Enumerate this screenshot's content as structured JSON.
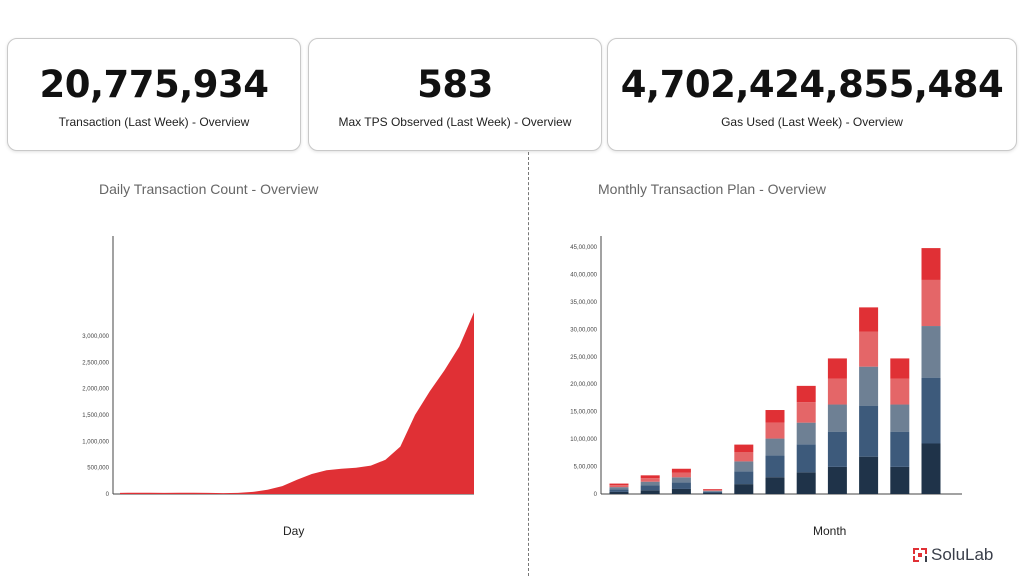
{
  "cards": [
    {
      "value": "20,775,934",
      "label": "Transaction (Last Week) - Overview"
    },
    {
      "value": "583",
      "label": "Max TPS Observed (Last Week) - Overview"
    },
    {
      "value": "4,702,424,855,484",
      "label": "Gas Used (Last Week) - Overview"
    }
  ],
  "brand": {
    "name": "SoluLab",
    "color": "#e03035"
  },
  "chart_data": [
    {
      "type": "area",
      "title": "Daily Transaction Count - Overview",
      "xlabel": "Day",
      "ylabel": "",
      "ylim": [
        0,
        3000000
      ],
      "yticks": [
        "0",
        "500,000",
        "1,000,000",
        "1,500,000",
        "2,000,000",
        "2,500,000",
        "3,000,000"
      ],
      "ytick_values": [
        0,
        500000,
        1000000,
        1500000,
        2000000,
        2500000,
        3000000
      ],
      "color": "#e03035",
      "values": [
        20000,
        25000,
        22000,
        20000,
        22000,
        24000,
        20000,
        18000,
        20000,
        40000,
        80000,
        150000,
        270000,
        380000,
        450000,
        480000,
        500000,
        540000,
        650000,
        900000,
        1500000,
        1950000,
        2350000,
        2800000,
        3450000
      ]
    },
    {
      "type": "bar",
      "stacked": true,
      "title": "Monthly Transaction Plan - Overview",
      "xlabel": "Month",
      "ylabel": "",
      "ylim": [
        0,
        4500000
      ],
      "yticks": [
        "0",
        "5,00,000",
        "10,00,000",
        "15,00,000",
        "20,00,000",
        "25,00,000",
        "30,00,000",
        "35,00,000",
        "40,00,000",
        "45,00,000"
      ],
      "ytick_values": [
        0,
        500000,
        1000000,
        1500000,
        2000000,
        2500000,
        3000000,
        3500000,
        4000000,
        4500000
      ],
      "series": [
        {
          "color": "#1f3349",
          "values": [
            38000,
            68000,
            92000,
            18000,
            180000,
            306000,
            394000,
            494000,
            680000,
            494000,
            920000
          ]
        },
        {
          "color": "#3d5a7b",
          "values": [
            49000,
            88000,
            120000,
            23000,
            234000,
            398000,
            512000,
            642000,
            930000,
            642000,
            1200000
          ]
        },
        {
          "color": "#6e8094",
          "values": [
            38000,
            68000,
            92000,
            18000,
            180000,
            306000,
            394000,
            494000,
            710000,
            494000,
            940000
          ]
        },
        {
          "color": "#e46668",
          "values": [
            36000,
            65000,
            87000,
            17000,
            171000,
            291000,
            374000,
            469000,
            640000,
            469000,
            840000
          ]
        },
        {
          "color": "#e03035",
          "values": [
            29000,
            51000,
            69000,
            14000,
            135000,
            229000,
            296000,
            371000,
            440000,
            371000,
            580000
          ]
        }
      ]
    }
  ]
}
